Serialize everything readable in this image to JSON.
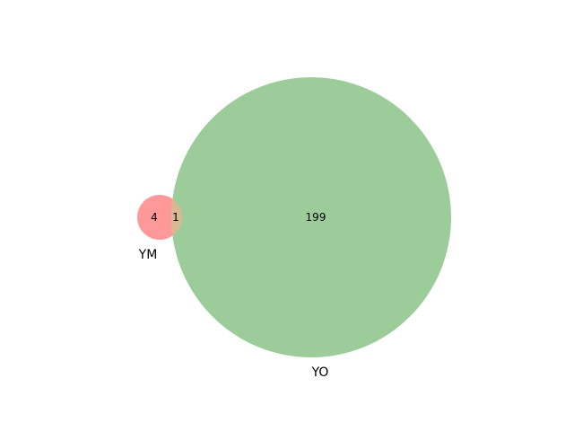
{
  "venn": {
    "type": "venn2",
    "sets": [
      {
        "label": "YM",
        "color": "#ff9999"
      },
      {
        "label": "YO",
        "color": "#9ccc9a"
      }
    ],
    "regions": {
      "only_first": "4",
      "intersection": "1",
      "only_second": "199"
    },
    "intersection_color": "#d9b894"
  }
}
